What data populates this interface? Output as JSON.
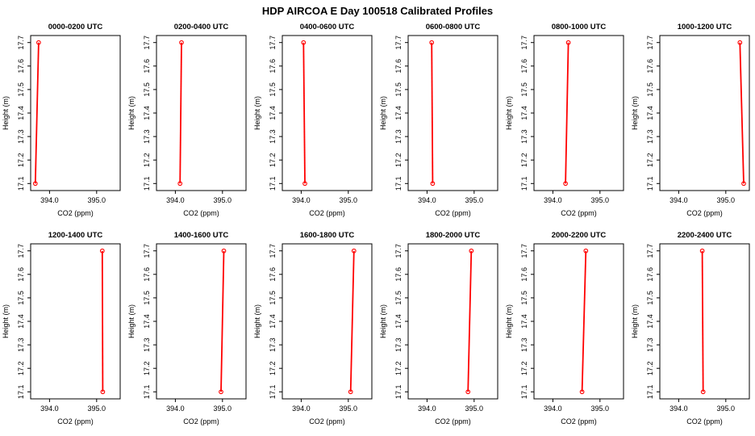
{
  "title": "HDP AIRCOA E  Day 100518  Calibrated Profiles",
  "chart_data": {
    "type": "line",
    "layout": {
      "rows": 2,
      "cols": 6,
      "grid": false,
      "legend": "none"
    },
    "xlabel": "CO2 (ppm)",
    "ylabel": "Height (m)",
    "xlim": [
      393.6,
      395.5
    ],
    "ylim": [
      17.07,
      17.73
    ],
    "xticks": [
      394.0,
      395.0
    ],
    "yticks": [
      17.1,
      17.2,
      17.3,
      17.4,
      17.5,
      17.6,
      17.7
    ],
    "line_color": "#ff0000",
    "marker": "open-circle",
    "panels": [
      {
        "title": "0000-0200 UTC",
        "heights": [
          17.1,
          17.7
        ],
        "co2": [
          393.7,
          393.77
        ]
      },
      {
        "title": "0200-0400 UTC",
        "heights": [
          17.1,
          17.7
        ],
        "co2": [
          394.1,
          394.13
        ]
      },
      {
        "title": "0400-0600 UTC",
        "heights": [
          17.1,
          17.7
        ],
        "co2": [
          394.08,
          394.05
        ]
      },
      {
        "title": "0600-0800 UTC",
        "heights": [
          17.1,
          17.7
        ],
        "co2": [
          394.12,
          394.1
        ]
      },
      {
        "title": "0800-1000 UTC",
        "heights": [
          17.1,
          17.7
        ],
        "co2": [
          394.27,
          394.33
        ]
      },
      {
        "title": "1000-1200 UTC",
        "heights": [
          17.1,
          17.7
        ],
        "co2": [
          395.38,
          395.3
        ]
      },
      {
        "title": "1200-1400 UTC",
        "heights": [
          17.1,
          17.7
        ],
        "co2": [
          395.13,
          395.12
        ]
      },
      {
        "title": "1400-1600 UTC",
        "heights": [
          17.1,
          17.7
        ],
        "co2": [
          394.97,
          395.03
        ]
      },
      {
        "title": "1600-1800 UTC",
        "heights": [
          17.1,
          17.7
        ],
        "co2": [
          395.05,
          395.12
        ]
      },
      {
        "title": "1800-2000 UTC",
        "heights": [
          17.1,
          17.7
        ],
        "co2": [
          394.87,
          394.94
        ]
      },
      {
        "title": "2000-2200 UTC",
        "heights": [
          17.1,
          17.7
        ],
        "co2": [
          394.62,
          394.7
        ]
      },
      {
        "title": "2200-2400 UTC",
        "heights": [
          17.1,
          17.7
        ],
        "co2": [
          394.52,
          394.5
        ]
      }
    ]
  }
}
